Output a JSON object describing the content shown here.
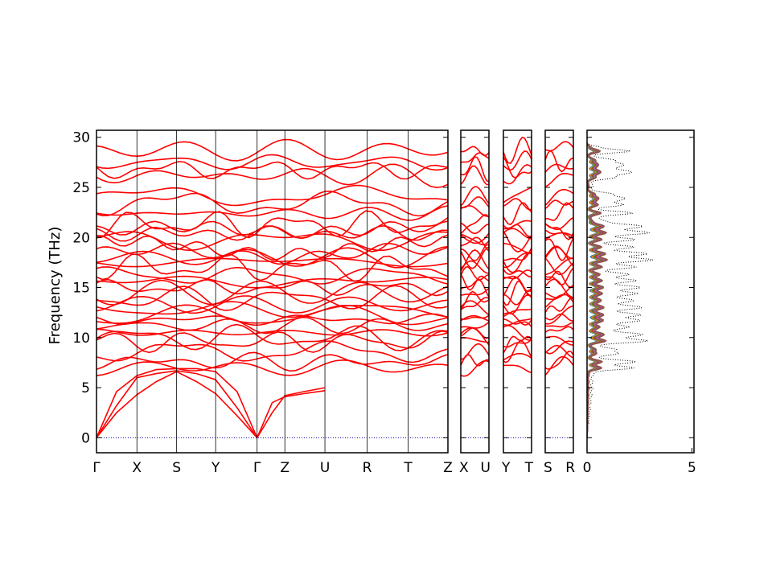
{
  "chart_data": {
    "type": "line",
    "title": "",
    "ylabel": "Frequency (THz)",
    "ylim": [
      -1.5,
      30.7
    ],
    "yticks": [
      0,
      5,
      10,
      15,
      20,
      25,
      30
    ],
    "band_color": "#ff0000",
    "zero_line_color": "#0000aa",
    "segments": [
      {
        "name": "main-path",
        "labels": [
          "Γ",
          "X",
          "S",
          "Y",
          "Γ",
          "Z",
          "U",
          "R",
          "T",
          "Z"
        ],
        "kpoints": [
          0,
          0.115,
          0.228,
          0.339,
          0.457,
          0.536,
          0.65,
          0.77,
          0.887,
          1.0
        ]
      },
      {
        "name": "X-U",
        "labels": [
          "X",
          "U"
        ],
        "kpoints": [
          0,
          1
        ]
      },
      {
        "name": "Y-T",
        "labels": [
          "Y",
          "T"
        ],
        "kpoints": [
          0,
          1
        ]
      },
      {
        "name": "S-R",
        "labels": [
          "S",
          "R"
        ],
        "kpoints": [
          0,
          1
        ]
      }
    ],
    "acoustic_branches": [
      {
        "segment": 0,
        "x": [
          0,
          0.057,
          0.115,
          0.17,
          0.228,
          0.285,
          0.339,
          0.4,
          0.457
        ],
        "y": [
          0,
          3.2,
          6.0,
          6.4,
          6.7,
          6.4,
          5.8,
          3.0,
          0
        ]
      },
      {
        "segment": 0,
        "x": [
          0,
          0.057,
          0.115,
          0.17,
          0.228,
          0.285,
          0.339,
          0.4,
          0.457
        ],
        "y": [
          0,
          4.6,
          6.2,
          6.8,
          6.9,
          6.9,
          6.6,
          4.6,
          0
        ]
      },
      {
        "segment": 0,
        "x": [
          0,
          0.057,
          0.115,
          0.17,
          0.228,
          0.285,
          0.339,
          0.4,
          0.457
        ],
        "y": [
          0,
          2.5,
          4.3,
          5.6,
          6.6,
          5.6,
          4.4,
          2.2,
          0
        ]
      },
      {
        "segment": 0,
        "x": [
          0.457,
          0.5,
          0.536,
          0.59,
          0.65
        ],
        "y": [
          0,
          2.5,
          4.2,
          4.6,
          5.0
        ]
      },
      {
        "segment": 0,
        "x": [
          0.457,
          0.5,
          0.536,
          0.59,
          0.65
        ],
        "y": [
          0,
          3.5,
          4.1,
          4.4,
          4.7
        ]
      }
    ],
    "optical_band_levels": [
      7.0,
      7.6,
      8.6,
      9.6,
      10.0,
      10.5,
      11.2,
      11.8,
      12.2,
      12.8,
      13.3,
      13.9,
      14.5,
      15.0,
      15.6,
      16.2,
      17.0,
      17.6,
      18.0,
      18.4,
      19.0,
      19.8,
      20.4,
      20.8,
      21.3,
      22.4,
      23.4,
      24.1,
      26.2,
      26.8,
      27.5,
      28.7
    ],
    "dos": {
      "xlim": [
        0,
        5.1
      ],
      "xticks": [
        0,
        5
      ],
      "total_color": "#000000",
      "partial_colors": [
        "#1f77b4",
        "#ff7f0e",
        "#2ca02c",
        "#d62728",
        "#9467bd",
        "#8c564b"
      ]
    }
  }
}
